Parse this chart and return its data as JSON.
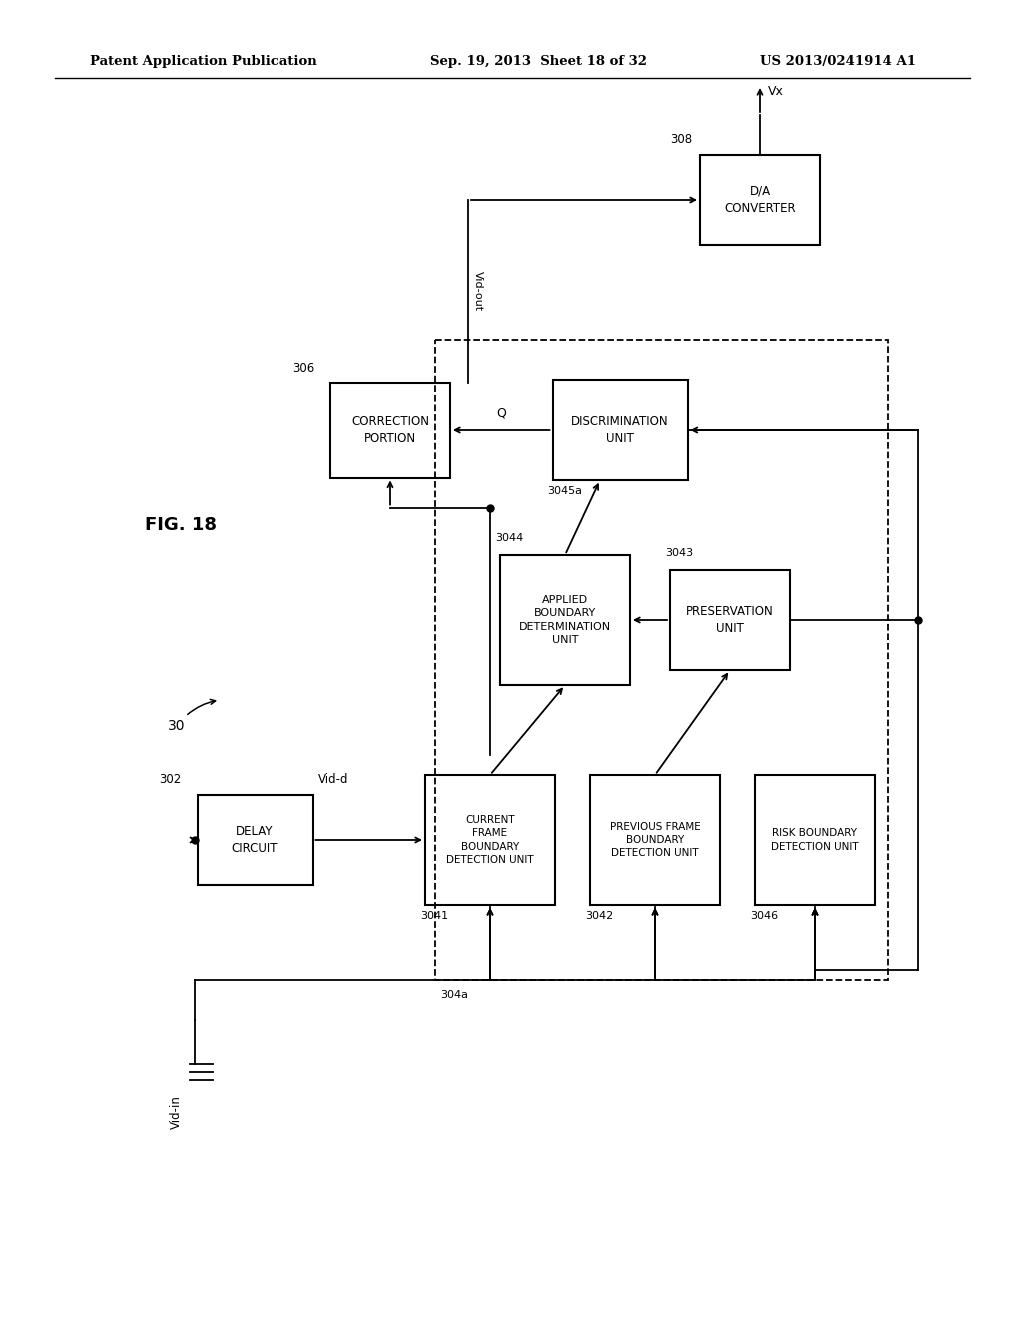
{
  "bg_color": "#ffffff",
  "header_left": "Patent Application Publication",
  "header_mid": "Sep. 19, 2013  Sheet 18 of 32",
  "header_right": "US 2013/0241914 A1",
  "fig_label": "FIG. 18",
  "system_label": "30"
}
